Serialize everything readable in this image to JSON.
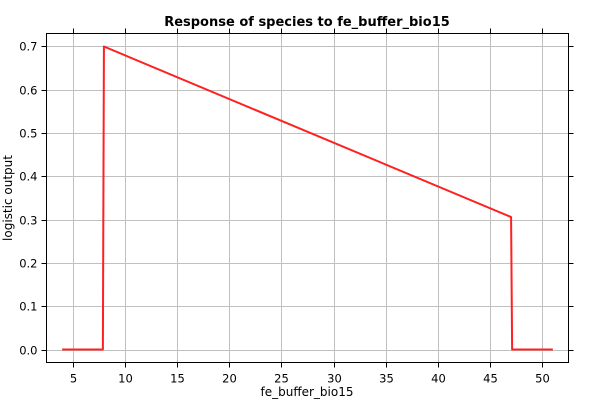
{
  "chart_data": {
    "type": "line",
    "title": "Response of species to fe_buffer_bio15",
    "xlabel": "fe_buffer_bio15",
    "ylabel": "logistic output",
    "xlim": [
      2.5,
      52.5
    ],
    "ylim": [
      -0.03,
      0.73
    ],
    "xticks": [
      5,
      10,
      15,
      20,
      25,
      30,
      35,
      40,
      45,
      50
    ],
    "yticks": [
      0.0,
      0.1,
      0.2,
      0.3,
      0.4,
      0.5,
      0.6,
      0.7
    ],
    "ytick_labels": [
      "0.0",
      "0.1",
      "0.2",
      "0.3",
      "0.4",
      "0.5",
      "0.6",
      "0.7"
    ],
    "grid": true,
    "series": [
      {
        "color": "#ff2020",
        "x": [
          4.0,
          7.9,
          8.0,
          47.0,
          47.1,
          51.0
        ],
        "y": [
          0.0,
          0.0,
          0.7,
          0.306,
          0.0,
          0.0
        ]
      }
    ]
  }
}
